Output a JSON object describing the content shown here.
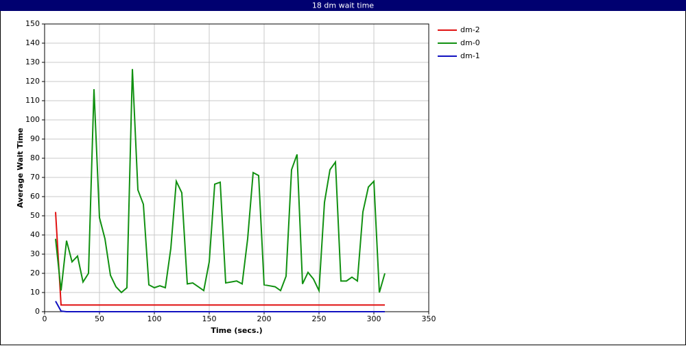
{
  "chart_data": {
    "type": "line",
    "title": "18 dm wait time",
    "x_label": "Time (secs.)",
    "y_label": "Average Wait Time",
    "x": [
      10,
      15,
      20,
      25,
      30,
      35,
      40,
      45,
      50,
      55,
      60,
      65,
      70,
      75,
      80,
      85,
      90,
      95,
      100,
      105,
      110,
      115,
      120,
      125,
      130,
      135,
      140,
      145,
      150,
      155,
      160,
      165,
      170,
      175,
      180,
      185,
      190,
      195,
      200,
      205,
      210,
      215,
      220,
      225,
      230,
      235,
      240,
      245,
      250,
      255,
      260,
      265,
      270,
      275,
      280,
      285,
      290,
      295,
      300,
      305,
      310
    ],
    "series": [
      {
        "name": "dm-2",
        "color": "#e01010",
        "values": [
          52,
          3.5,
          3.5,
          3.5,
          3.5,
          3.5,
          3.5,
          3.5,
          3.5,
          3.5,
          3.5,
          3.5,
          3.5,
          3.5,
          3.5,
          3.5,
          3.5,
          3.5,
          3.5,
          3.5,
          3.5,
          3.5,
          3.5,
          3.5,
          3.5,
          3.5,
          3.5,
          3.5,
          3.5,
          3.5,
          3.5,
          3.5,
          3.5,
          3.5,
          3.5,
          3.5,
          3.5,
          3.5,
          3.5,
          3.5,
          3.5,
          3.5,
          3.5,
          3.5,
          3.5,
          3.5,
          3.5,
          3.5,
          3.5,
          3.5,
          3.5,
          3.5,
          3.5,
          3.5,
          3.5,
          3.5,
          3.5,
          3.5,
          3.5,
          3.5,
          3.5
        ]
      },
      {
        "name": "dm-0",
        "color": "#109010",
        "values": [
          38,
          11,
          37,
          26,
          29,
          15.5,
          20,
          116,
          49,
          38,
          19,
          13,
          10,
          12.5,
          126.5,
          63.5,
          56,
          14,
          12.5,
          13.5,
          12.5,
          33,
          68,
          62,
          14.5,
          15,
          13,
          11,
          26,
          66.5,
          67.5,
          15,
          15.5,
          16,
          14.5,
          38,
          72.5,
          71,
          14,
          13.5,
          13,
          11,
          18.5,
          74,
          82,
          14.5,
          20.5,
          17,
          11,
          57,
          74,
          78,
          16,
          16,
          18,
          16,
          52,
          65,
          68,
          10,
          20
        ]
      },
      {
        "name": "dm-1",
        "color": "#1010c0",
        "values": [
          5.5,
          0.3,
          0,
          0,
          0,
          0,
          0,
          0,
          0,
          0,
          0,
          0,
          0,
          0,
          0,
          0,
          0,
          0,
          0,
          0,
          0,
          0,
          0,
          0,
          0,
          0,
          0,
          0,
          0,
          0,
          0,
          0,
          0,
          0,
          0,
          0,
          0,
          0,
          0,
          0,
          0,
          0,
          0,
          0,
          0,
          0,
          0,
          0,
          0,
          0,
          0,
          0,
          0,
          0,
          0,
          0,
          0,
          0,
          0,
          0,
          0
        ]
      }
    ],
    "xlim": [
      0,
      350
    ],
    "xticks": [
      0,
      50,
      100,
      150,
      200,
      250,
      300,
      350
    ],
    "ylim": [
      0,
      150
    ],
    "yticks": [
      0,
      10,
      20,
      30,
      40,
      50,
      60,
      70,
      80,
      90,
      100,
      110,
      120,
      130,
      140,
      150
    ],
    "grid": true,
    "legend": "right"
  }
}
